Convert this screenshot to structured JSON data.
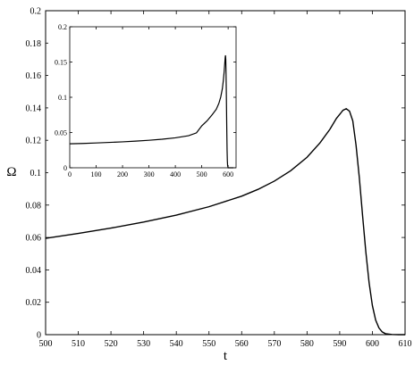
{
  "chart_data": [
    {
      "type": "line",
      "title": "",
      "xlabel": "t",
      "ylabel": "Ω",
      "xlim": [
        500,
        610
      ],
      "ylim": [
        0,
        0.2
      ],
      "xticks": [
        "500",
        "510",
        "520",
        "530",
        "540",
        "550",
        "560",
        "570",
        "580",
        "590",
        "600",
        "610"
      ],
      "yticks": [
        "0",
        "0.02",
        "0.04",
        "0.06",
        "0.08",
        "0.1",
        "0.12",
        "0.14",
        "0.16",
        "0.18",
        "0.2"
      ],
      "grid": false,
      "series": [
        {
          "x": [
            500,
            510,
            520,
            530,
            540,
            550,
            560,
            565,
            570,
            575,
            580,
            584,
            587,
            589,
            591,
            592,
            593,
            594,
            595,
            596,
            597,
            598,
            599,
            600,
            601,
            602,
            603,
            604,
            606,
            608,
            610
          ],
          "y": [
            0.0595,
            0.0625,
            0.0658,
            0.0695,
            0.0738,
            0.079,
            0.0855,
            0.0897,
            0.0948,
            0.1012,
            0.1095,
            0.1185,
            0.1268,
            0.1335,
            0.1385,
            0.1395,
            0.138,
            0.132,
            0.117,
            0.097,
            0.0735,
            0.051,
            0.032,
            0.018,
            0.009,
            0.0042,
            0.0017,
            0.0006,
            0.0001,
            0.0,
            0.0
          ]
        }
      ]
    },
    {
      "type": "line",
      "title": "",
      "xlabel": "",
      "ylabel": "",
      "xlim": [
        0,
        630
      ],
      "ylim": [
        0,
        0.2
      ],
      "xticks": [
        "0",
        "100",
        "200",
        "300",
        "400",
        "500",
        "600"
      ],
      "yticks": [
        "0",
        "0.05",
        "0.1",
        "0.15",
        "0.2"
      ],
      "grid": false,
      "series": [
        {
          "x": [
            0,
            50,
            100,
            150,
            200,
            250,
            300,
            350,
            400,
            450,
            480,
            500,
            520,
            540,
            555,
            565,
            572,
            578,
            582,
            585,
            587,
            589,
            590,
            591,
            592,
            593,
            594,
            595,
            596,
            597,
            598,
            600,
            610,
            620
          ],
          "y": [
            0.034,
            0.0345,
            0.0352,
            0.036,
            0.0368,
            0.0378,
            0.039,
            0.0405,
            0.0425,
            0.0455,
            0.0495,
            0.0595,
            0.0665,
            0.0755,
            0.083,
            0.0915,
            0.1005,
            0.112,
            0.1245,
            0.1365,
            0.147,
            0.157,
            0.1595,
            0.154,
            0.135,
            0.11,
            0.08,
            0.05,
            0.025,
            0.01,
            0.003,
            0.0,
            0.0,
            0.0
          ]
        }
      ]
    }
  ]
}
